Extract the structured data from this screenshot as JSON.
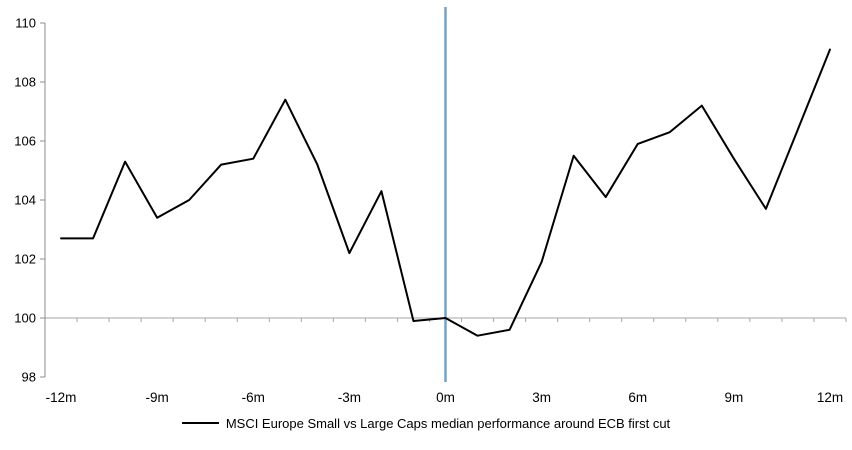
{
  "chart_data": {
    "type": "line",
    "title": "",
    "months": [
      -12,
      -11,
      -10,
      -9,
      -8,
      -7,
      -6,
      -5,
      -4,
      -3,
      -2,
      -1,
      0,
      1,
      2,
      3,
      4,
      5,
      6,
      7,
      8,
      9,
      10,
      11,
      12
    ],
    "series": [
      {
        "name": "MSCI Europe Small vs Large Caps median performance around ECB first cut",
        "color": "#000000",
        "values": [
          102.7,
          102.7,
          105.3,
          103.4,
          104.0,
          105.2,
          105.4,
          107.4,
          105.2,
          102.2,
          104.3,
          99.9,
          100.0,
          99.4,
          99.6,
          101.9,
          105.5,
          104.1,
          105.9,
          106.3,
          107.2,
          105.4,
          103.7,
          106.4,
          109.1
        ]
      }
    ],
    "x_tick_months": [
      -12,
      -9,
      -6,
      -3,
      0,
      3,
      6,
      9,
      12
    ],
    "x_tick_labels": [
      "-12m",
      "-9m",
      "-6m",
      "-3m",
      "0m",
      "3m",
      "6m",
      "9m",
      "12m"
    ],
    "y_ticks": [
      98,
      100,
      102,
      104,
      106,
      108,
      110
    ],
    "ylim": [
      97.8,
      110.5
    ],
    "baseline_value": 100,
    "event_line": {
      "x_month": 0,
      "color": "#74a3c9"
    },
    "axis_color": "#8c8c8c",
    "gridline_color": "#a6a6a6",
    "grid": "single horizontal line at 100 with monthly boundary ticks",
    "legend_position": "bottom-center"
  },
  "legend": {
    "label": "MSCI Europe Small vs Large Caps median performance around ECB first cut",
    "swatch_color": "#000000"
  }
}
